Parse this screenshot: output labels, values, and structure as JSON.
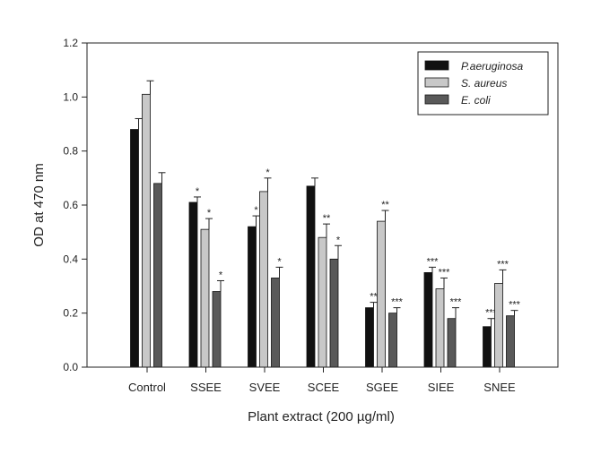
{
  "chart_data": {
    "type": "bar",
    "xlabel": "Plant extract (200 µg/ml)",
    "ylabel": "OD at 470 nm",
    "ylim": [
      0,
      1.2
    ],
    "yticks": [
      "0.0",
      "0.2",
      "0.4",
      "0.6",
      "0.8",
      "1.0",
      "1.2"
    ],
    "categories": [
      "Control",
      "SSEE",
      "SVEE",
      "SCEE",
      "SGEE",
      "SIEE",
      "SNEE"
    ],
    "legend_position": "top-right",
    "series": [
      {
        "name": "P.aeruginosa",
        "color": "#111111",
        "values": [
          0.88,
          0.61,
          0.52,
          0.67,
          0.22,
          0.35,
          0.15
        ],
        "errors": [
          0.04,
          0.02,
          0.04,
          0.03,
          0.02,
          0.02,
          0.03
        ],
        "significance": [
          "",
          "*",
          "*",
          "",
          "**",
          "***",
          "***"
        ]
      },
      {
        "name": "S. aureus",
        "color": "#c8c8c8",
        "values": [
          1.01,
          0.51,
          0.65,
          0.48,
          0.54,
          0.29,
          0.31
        ],
        "errors": [
          0.05,
          0.04,
          0.05,
          0.05,
          0.04,
          0.04,
          0.05
        ],
        "significance": [
          "",
          "*",
          "*",
          "**",
          "**",
          "***",
          "***"
        ]
      },
      {
        "name": "E. coli",
        "color": "#595959",
        "values": [
          0.68,
          0.28,
          0.33,
          0.4,
          0.2,
          0.18,
          0.19
        ],
        "errors": [
          0.04,
          0.04,
          0.04,
          0.05,
          0.02,
          0.04,
          0.02
        ],
        "significance": [
          "",
          "*",
          "*",
          "*",
          "***",
          "***",
          "***"
        ]
      }
    ]
  }
}
